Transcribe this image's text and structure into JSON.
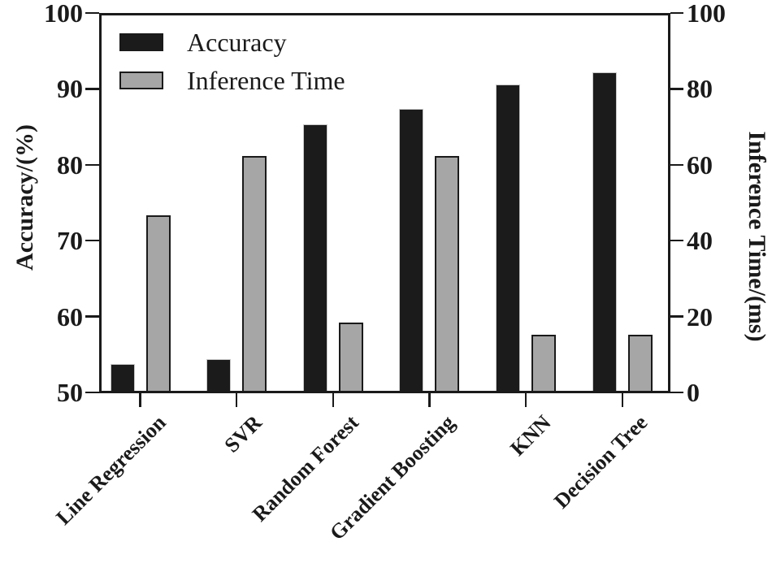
{
  "chart_data": {
    "type": "bar",
    "title": "",
    "categories": [
      "Line Regression",
      "SVR",
      "Random Forest",
      "Gradient Boosting",
      "KNN",
      "Decision Tree"
    ],
    "series": [
      {
        "name": "Accuracy",
        "axis": "left",
        "color": "#1b1b1b",
        "values": [
          53.8,
          54.4,
          85.3,
          87.4,
          90.6,
          92.2
        ]
      },
      {
        "name": "Inference Time",
        "axis": "right",
        "color": "#a6a6a6",
        "values": [
          46.7,
          62.4,
          18.5,
          62.4,
          15.1,
          15.1
        ]
      }
    ],
    "left_axis": {
      "label": "Accuracy/(%)",
      "min": 50,
      "max": 100,
      "ticks": [
        50,
        60,
        70,
        80,
        90,
        100
      ]
    },
    "right_axis": {
      "label": "Inference Time/(ms)",
      "min": 0,
      "max": 100,
      "ticks": [
        0,
        20,
        40,
        60,
        80,
        100
      ]
    },
    "x_axis": {
      "tick_label_rotation_deg": 45
    },
    "legend": {
      "position": "top-left",
      "entries": [
        "Accuracy",
        "Inference Time"
      ]
    },
    "grid": false,
    "colors": {
      "accuracy_bar": "#1b1b1b",
      "inference_bar": "#a6a6a6",
      "axis": "#1a1a1a",
      "background": "#ffffff"
    }
  }
}
